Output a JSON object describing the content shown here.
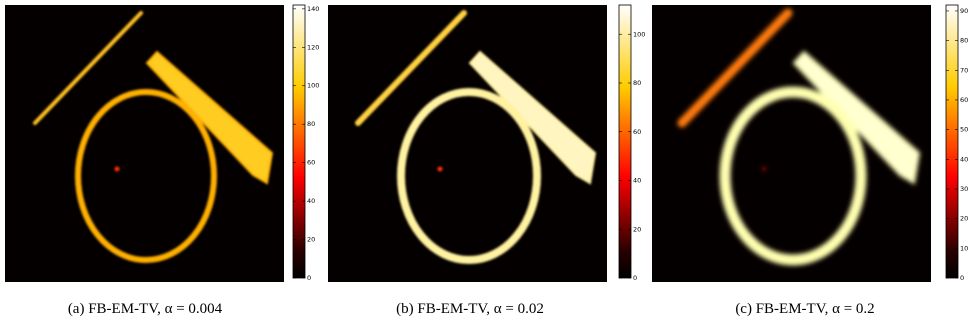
{
  "panels": [
    {
      "caption": "(a) FB-EM-TV, α = 0.004",
      "clim": [
        0,
        142
      ],
      "ticks": [
        0,
        20,
        40,
        60,
        80,
        100,
        120,
        140
      ]
    },
    {
      "caption": "(b) FB-EM-TV, α = 0.02",
      "clim": [
        0,
        112
      ],
      "ticks": [
        0,
        20,
        40,
        60,
        80,
        100
      ]
    },
    {
      "caption": "(c) FB-EM-TV, α = 0.2",
      "clim": [
        0,
        92
      ],
      "ticks": [
        0,
        10,
        20,
        30,
        40,
        50,
        60,
        70,
        80,
        90
      ]
    }
  ]
}
